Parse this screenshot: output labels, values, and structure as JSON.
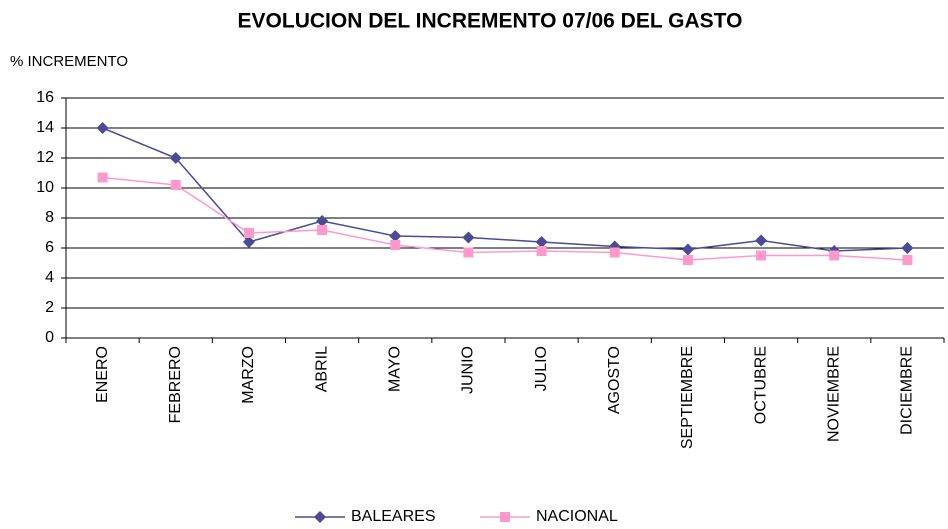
{
  "chart_data": {
    "type": "line",
    "title": "EVOLUCION DEL INCREMENTO 07/06 DEL GASTO",
    "y_label": "% INCREMENTO",
    "categories": [
      "ENERO",
      "FEBRERO",
      "MARZO",
      "ABRIL",
      "MAYO",
      "JUNIO",
      "JULIO",
      "AGOSTO",
      "SEPTIEMBRE",
      "OCTUBRE",
      "NOVIEMBRE",
      "DICIEMBRE"
    ],
    "series": [
      {
        "name": "BALEARES",
        "color": "#4a4a96",
        "marker": "diamond",
        "values": [
          14,
          12,
          6.4,
          7.8,
          6.8,
          6.7,
          6.4,
          6.1,
          5.9,
          6.5,
          5.8,
          6.0
        ]
      },
      {
        "name": "NACIONAL",
        "color": "#ff99cc",
        "marker": "square",
        "values": [
          10.7,
          10.2,
          7.0,
          7.2,
          6.2,
          5.7,
          5.8,
          5.7,
          5.2,
          5.5,
          5.5,
          5.2
        ]
      }
    ],
    "ylim": [
      0,
      16
    ],
    "yticks": [
      0,
      2,
      4,
      6,
      8,
      10,
      12,
      14,
      16
    ],
    "grid": true,
    "legend": "bottom"
  }
}
